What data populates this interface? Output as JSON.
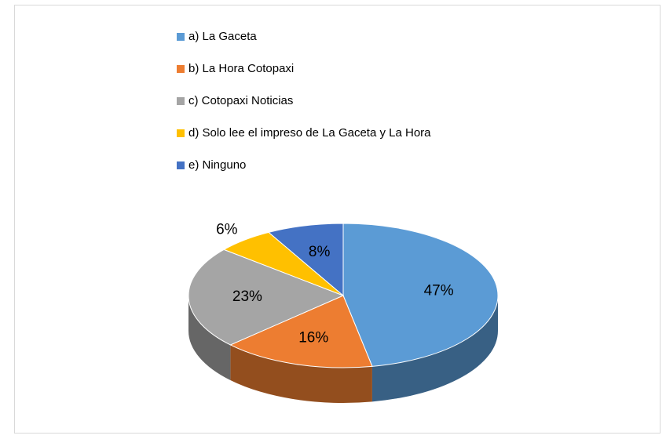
{
  "chart_data": {
    "type": "pie",
    "categories": [
      "a) La Gaceta",
      "b) La Hora Cotopaxi",
      "c) Cotopaxi Noticias",
      "d) Solo lee el impreso de La Gaceta y La Hora",
      "e) Ninguno"
    ],
    "values": [
      47,
      16,
      23,
      6,
      8
    ],
    "value_labels": [
      "47%",
      "16%",
      "23%",
      "6%",
      "8%"
    ],
    "colors": [
      "#5b9bd5",
      "#ed7d31",
      "#a5a5a5",
      "#ffc000",
      "#4472c4"
    ],
    "legend": "top"
  }
}
